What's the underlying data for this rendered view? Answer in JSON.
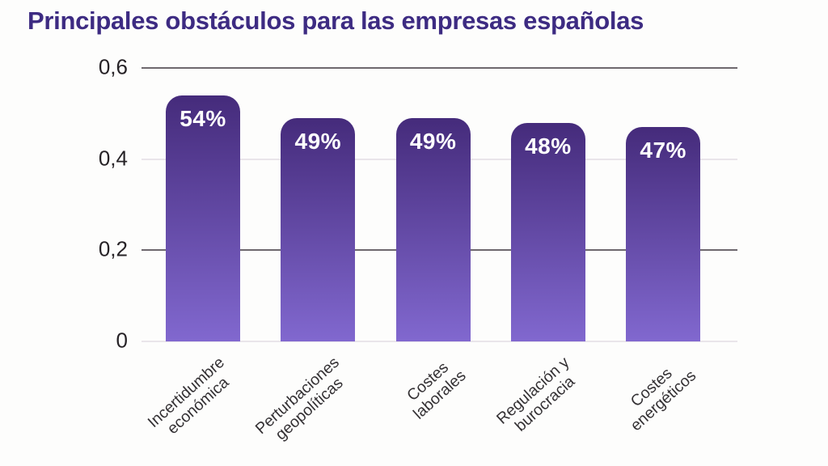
{
  "title": "Principales obstáculos para las empresas españolas",
  "chart_data": {
    "type": "bar",
    "title": "Principales obstáculos para las empresas españolas",
    "categories": [
      "Incertidumbre\neconómica",
      "Perturbaciones\ngeopolíticas",
      "Costes\nlaborales",
      "Regulación y\nburocracia",
      "Costes\nenergéticos"
    ],
    "values": [
      0.54,
      0.49,
      0.49,
      0.48,
      0.47
    ],
    "bar_labels": [
      "54%",
      "49%",
      "49%",
      "48%",
      "47%"
    ],
    "xlabel": "",
    "ylabel": "",
    "ylim": [
      0,
      0.6
    ],
    "yticks": [
      {
        "label": "0",
        "value": 0.0,
        "line": "light"
      },
      {
        "label": "0,2",
        "value": 0.2,
        "line": "strong"
      },
      {
        "label": "0,4",
        "value": 0.4,
        "line": "light"
      },
      {
        "label": "0,6",
        "value": 0.6,
        "line": "strong"
      }
    ],
    "grid": "horizontal-only",
    "legend": "none",
    "colors": {
      "title_text": "#3d2b82",
      "bar_gradient_top": "#452b7b",
      "bar_gradient_bottom": "#8168cf",
      "bar_value_text": "#ffffff",
      "grid_strong": "#6e686e",
      "grid_light": "#e9e5ea",
      "axis_tick_text": "#262226",
      "category_text": "#333033",
      "background": "#fdfdfc"
    }
  }
}
